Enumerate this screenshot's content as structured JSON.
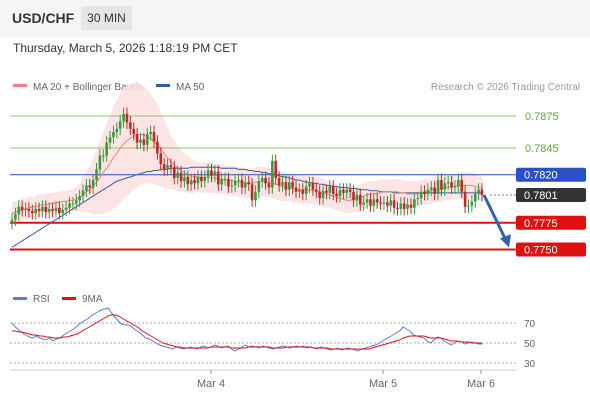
{
  "header": {
    "symbol": "USD/CHF",
    "timeframe": "30 MIN",
    "datetime": "Thursday, March 5, 2026 1:18:19 PM CET"
  },
  "legend": {
    "ma20_label": "MA 20 + Bollinger Bands",
    "ma50_label": "MA 50",
    "credit": "Research © 2026 Trading Central"
  },
  "colors": {
    "ma20": "#f08080",
    "bands": "#fde0e0",
    "ma50": "#3a5ba0",
    "resistance": "#8cc86a",
    "pivot": "#2b4fc4",
    "support": "#e01010",
    "current": "#333333",
    "arrow": "#2e64b0",
    "candle_up": "#3c9a3c",
    "candle_down": "#c0282a",
    "rsi": "#5a7ed6",
    "rsi_ma": "#e01010"
  },
  "chart_data": [
    {
      "type": "candlestick",
      "ylim": [
        0.7742,
        0.789
      ],
      "x_ticks": [
        "Mar 4",
        "Mar 5",
        "Mar 6"
      ],
      "levels": [
        {
          "value": 0.7875,
          "label": "0.7875",
          "kind": "resistance"
        },
        {
          "value": 0.7845,
          "label": "0.7845",
          "kind": "resistance"
        },
        {
          "value": 0.782,
          "label": "0.7820",
          "kind": "pivot"
        },
        {
          "value": 0.7801,
          "label": "0.7801",
          "kind": "current"
        },
        {
          "value": 0.7775,
          "label": "0.7775",
          "kind": "support"
        },
        {
          "value": 0.775,
          "label": "0.7750",
          "kind": "support"
        }
      ],
      "close": [
        0.7778,
        0.7783,
        0.779,
        0.7787,
        0.7788,
        0.7786,
        0.7784,
        0.7788,
        0.7786,
        0.779,
        0.7785,
        0.7788,
        0.7786,
        0.7789,
        0.7784,
        0.7787,
        0.7789,
        0.7793,
        0.7793,
        0.7796,
        0.78,
        0.7805,
        0.781,
        0.7808,
        0.7815,
        0.7825,
        0.7838,
        0.7838,
        0.785,
        0.7855,
        0.786,
        0.7863,
        0.787,
        0.7877,
        0.7869,
        0.7863,
        0.7858,
        0.785,
        0.7853,
        0.7848,
        0.7858,
        0.786,
        0.7851,
        0.784,
        0.783,
        0.7825,
        0.7829,
        0.7827,
        0.7817,
        0.7822,
        0.7814,
        0.7818,
        0.7811,
        0.7815,
        0.7812,
        0.7818,
        0.7814,
        0.7818,
        0.7824,
        0.7819,
        0.7823,
        0.7811,
        0.7816,
        0.7816,
        0.7809,
        0.781,
        0.7814,
        0.7815,
        0.7808,
        0.7813,
        0.7811,
        0.7796,
        0.7804,
        0.7814,
        0.7817,
        0.7812,
        0.7808,
        0.7833,
        0.7817,
        0.781,
        0.7813,
        0.7806,
        0.7813,
        0.7808,
        0.7804,
        0.7806,
        0.7802,
        0.7809,
        0.7812,
        0.7806,
        0.7804,
        0.7798,
        0.7805,
        0.7803,
        0.7809,
        0.7802,
        0.78,
        0.7806,
        0.7803,
        0.7806,
        0.7804,
        0.7796,
        0.7801,
        0.7792,
        0.7794,
        0.7797,
        0.7791,
        0.7797,
        0.7794,
        0.7793,
        0.7794,
        0.7791,
        0.7796,
        0.7789,
        0.7788,
        0.7793,
        0.7788,
        0.7792,
        0.7789,
        0.7797,
        0.7798,
        0.7804,
        0.7802,
        0.7806,
        0.7808,
        0.7802,
        0.7815,
        0.7806,
        0.7812,
        0.7813,
        0.7808,
        0.7809,
        0.7815,
        0.7804,
        0.779,
        0.7791,
        0.7795,
        0.7802,
        0.7806,
        0.7801
      ],
      "ma20": [
        0.7784,
        0.7785,
        0.7786,
        0.7787,
        0.7788,
        0.7789,
        0.779,
        0.779,
        0.7791,
        0.7792,
        0.7792,
        0.7793,
        0.7793,
        0.7794,
        0.7794,
        0.7795,
        0.7795,
        0.7796,
        0.7796,
        0.7797,
        0.7799,
        0.7801,
        0.7804,
        0.7806,
        0.7809,
        0.7813,
        0.7817,
        0.7822,
        0.7826,
        0.7831,
        0.7836,
        0.784,
        0.7845,
        0.7849,
        0.7852,
        0.7854,
        0.7856,
        0.7857,
        0.7858,
        0.7857,
        0.7856,
        0.7854,
        0.7851,
        0.7848,
        0.7844,
        0.784,
        0.7836,
        0.7832,
        0.7829,
        0.7826,
        0.7824,
        0.7822,
        0.782,
        0.7819,
        0.7818,
        0.7818,
        0.7817,
        0.7817,
        0.7817,
        0.7817,
        0.7817,
        0.7816,
        0.7816,
        0.7815,
        0.7815,
        0.7814,
        0.7814,
        0.7813,
        0.7813,
        0.7812,
        0.7812,
        0.7812,
        0.7813,
        0.7813,
        0.7814,
        0.7813,
        0.7813,
        0.7812,
        0.7811,
        0.781,
        0.7809,
        0.7808,
        0.7808,
        0.7807,
        0.7807,
        0.7806,
        0.7806,
        0.7806,
        0.7806,
        0.7805,
        0.7805,
        0.7804,
        0.7803,
        0.7802,
        0.7801,
        0.78,
        0.7799,
        0.7798,
        0.7797,
        0.7796,
        0.7796,
        0.7797,
        0.7798,
        0.7799,
        0.78,
        0.7801,
        0.7802,
        0.7802,
        0.7803,
        0.7803,
        0.7804,
        0.7804,
        0.7804,
        0.7804,
        0.7804,
        0.7803,
        0.7803,
        0.7802,
        0.7802,
        0.7802,
        0.7802,
        0.7803,
        0.7804,
        0.7804,
        0.7805,
        0.7806,
        0.7806,
        0.7807,
        0.7808,
        0.7808,
        0.7809,
        0.7809,
        0.781,
        0.781,
        0.781,
        0.781,
        0.781,
        0.7809,
        0.7808,
        0.7807
      ],
      "ma50": [
        0.7752,
        0.7754,
        0.7756,
        0.7758,
        0.776,
        0.7762,
        0.7764,
        0.7766,
        0.7768,
        0.777,
        0.7772,
        0.7774,
        0.7776,
        0.7778,
        0.778,
        0.7782,
        0.7784,
        0.7786,
        0.7788,
        0.779,
        0.7792,
        0.7794,
        0.7796,
        0.7798,
        0.78,
        0.7802,
        0.7804,
        0.7806,
        0.7808,
        0.781,
        0.7812,
        0.7814,
        0.7815,
        0.7816,
        0.7817,
        0.7818,
        0.7819,
        0.782,
        0.7821,
        0.7822,
        0.7823,
        0.7823,
        0.7824,
        0.7824,
        0.7825,
        0.7825,
        0.7825,
        0.7826,
        0.7826,
        0.7826,
        0.7826,
        0.7826,
        0.7826,
        0.7827,
        0.7827,
        0.7827,
        0.7827,
        0.7827,
        0.7827,
        0.7827,
        0.7827,
        0.7827,
        0.7826,
        0.7826,
        0.7826,
        0.7826,
        0.7826,
        0.7825,
        0.7825,
        0.7825,
        0.7824,
        0.7824,
        0.7823,
        0.7823,
        0.7822,
        0.7822,
        0.7821,
        0.7821,
        0.782,
        0.7819,
        0.7818,
        0.7818,
        0.7817,
        0.7816,
        0.7815,
        0.7815,
        0.7814,
        0.7813,
        0.7813,
        0.7812,
        0.7812,
        0.7811,
        0.7811,
        0.781,
        0.781,
        0.7809,
        0.7809,
        0.7808,
        0.7808,
        0.7808,
        0.7807,
        0.7807,
        0.7807,
        0.7806,
        0.7806,
        0.7806,
        0.7805,
        0.7805,
        0.7805,
        0.7804,
        0.7804,
        0.7804,
        0.7804,
        0.7803,
        0.7803,
        0.7803,
        0.7803,
        0.7803,
        0.7803,
        0.7803,
        0.7803,
        0.7803,
        0.7803,
        0.7803,
        0.7803,
        0.7803,
        0.7803,
        0.7803,
        0.7803,
        0.7803,
        0.7803,
        0.7803,
        0.7803,
        0.7803,
        0.7803,
        0.7803,
        0.7803,
        0.7803,
        0.7803,
        0.7803
      ],
      "band_halfwidth": [
        0.001,
        0.001,
        0.001,
        0.001,
        0.001,
        0.001,
        0.001,
        0.001,
        0.001,
        0.001,
        0.001,
        0.001,
        0.001,
        0.001,
        0.001,
        0.001,
        0.001,
        0.001,
        0.001,
        0.0011,
        0.0013,
        0.0016,
        0.0019,
        0.0022,
        0.0026,
        0.003,
        0.0034,
        0.0038,
        0.0042,
        0.0045,
        0.0048,
        0.005,
        0.0051,
        0.0052,
        0.0052,
        0.0051,
        0.005,
        0.0049,
        0.0047,
        0.0046,
        0.0044,
        0.0042,
        0.004,
        0.0038,
        0.0035,
        0.0032,
        0.0029,
        0.0026,
        0.0023,
        0.0021,
        0.0019,
        0.0018,
        0.0017,
        0.0016,
        0.0015,
        0.0014,
        0.0014,
        0.0014,
        0.0014,
        0.0014,
        0.0014,
        0.0014,
        0.0014,
        0.0014,
        0.0014,
        0.0014,
        0.0014,
        0.0014,
        0.0014,
        0.0014,
        0.0014,
        0.0014,
        0.0014,
        0.0014,
        0.0014,
        0.0014,
        0.0014,
        0.0014,
        0.0014,
        0.0014,
        0.0014,
        0.0013,
        0.0013,
        0.0013,
        0.0013,
        0.0013,
        0.0013,
        0.0013,
        0.0013,
        0.0013,
        0.0013,
        0.0013,
        0.0013,
        0.0013,
        0.0012,
        0.0012,
        0.0012,
        0.0012,
        0.0012,
        0.0012,
        0.0012,
        0.0012,
        0.0012,
        0.0012,
        0.0012,
        0.0012,
        0.0012,
        0.0012,
        0.0012,
        0.0012,
        0.0012,
        0.0012,
        0.0012,
        0.0012,
        0.0012,
        0.0012,
        0.0012,
        0.0012,
        0.0012,
        0.0012,
        0.0012,
        0.0012,
        0.0012,
        0.0012,
        0.0012,
        0.0012,
        0.0012,
        0.0012,
        0.0012,
        0.0012,
        0.0012,
        0.0012,
        0.0012,
        0.0012,
        0.0012,
        0.0012,
        0.0012,
        0.0012,
        0.0012,
        0.0012,
        0.0012,
        0.0012,
        0.0012
      ],
      "forecast": {
        "from": 0.7801,
        "to": 0.7752
      }
    },
    {
      "type": "line",
      "legend": [
        "RSI",
        "9MA"
      ],
      "ylim": [
        25,
        75
      ],
      "y_ticks": [
        70,
        50,
        30
      ],
      "rsi": [
        70,
        66,
        63,
        60,
        58,
        56,
        55,
        57,
        55,
        54,
        53,
        55,
        52,
        54,
        55,
        58,
        60,
        62,
        64,
        67,
        70,
        72,
        74,
        77,
        79,
        81,
        83,
        84,
        85,
        80,
        76,
        72,
        69,
        68,
        68,
        66,
        63,
        61,
        58,
        55,
        54,
        52,
        50,
        48,
        47,
        46,
        45,
        44,
        46,
        45,
        44,
        45,
        46,
        45,
        44,
        46,
        47,
        45,
        46,
        48,
        47,
        45,
        46,
        47,
        44,
        42,
        44,
        46,
        48,
        46,
        47,
        46,
        45,
        47,
        46,
        45,
        44,
        45,
        46,
        47,
        46,
        45,
        46,
        47,
        46,
        47,
        45,
        46,
        45,
        44,
        46,
        45,
        44,
        43,
        44,
        45,
        43,
        44,
        45,
        44,
        43,
        42,
        44,
        45,
        46,
        47,
        48,
        50,
        52,
        54,
        56,
        58,
        60,
        62,
        66,
        64,
        62,
        58,
        57,
        56,
        55,
        52,
        50,
        53,
        56,
        55,
        52,
        50,
        48,
        50,
        52,
        51,
        49,
        50,
        51,
        50,
        49,
        49
      ],
      "rsi_ma": [
        62,
        62,
        61,
        61,
        60,
        59,
        58,
        58,
        57,
        57,
        56,
        56,
        55,
        55,
        55,
        56,
        56,
        57,
        58,
        59,
        61,
        63,
        65,
        67,
        69,
        71,
        73,
        75,
        77,
        78,
        78,
        77,
        75,
        73,
        71,
        69,
        67,
        65,
        62,
        60,
        58,
        56,
        54,
        52,
        50,
        49,
        48,
        47,
        46,
        46,
        45,
        45,
        45,
        45,
        45,
        45,
        45,
        45,
        46,
        46,
        46,
        46,
        46,
        46,
        45,
        45,
        45,
        45,
        45,
        46,
        46,
        46,
        46,
        46,
        46,
        46,
        45,
        45,
        45,
        45,
        46,
        46,
        46,
        46,
        46,
        46,
        46,
        46,
        45,
        45,
        45,
        45,
        45,
        44,
        44,
        44,
        44,
        44,
        44,
        44,
        44,
        44,
        44,
        44,
        44,
        45,
        46,
        47,
        48,
        49,
        50,
        51,
        52,
        53,
        55,
        56,
        57,
        57,
        57,
        57,
        57,
        56,
        55,
        55,
        55,
        55,
        54,
        53,
        52,
        52,
        52,
        51,
        51,
        51,
        50,
        50,
        50,
        50
      ]
    }
  ]
}
